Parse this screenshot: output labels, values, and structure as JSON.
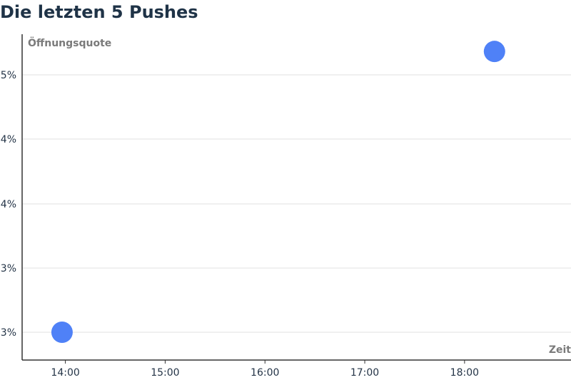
{
  "title": "Die letzten 5 Pushes",
  "chart_data": {
    "type": "scatter",
    "title": "Die letzten 5 Pushes",
    "xlabel": "Zeit",
    "ylabel": "Öffnungsquote",
    "x_ticks": [
      "14:00",
      "15:00",
      "16:00",
      "17:00",
      "18:00"
    ],
    "y_ticks": [
      "5%",
      "4%",
      "4%",
      "3%",
      "3%"
    ],
    "xlim": [
      "13:34",
      "19:04"
    ],
    "ylim": [
      2.6,
      5.3
    ],
    "grid": true,
    "legend": "none",
    "series": [
      {
        "points": [
          {
            "x": "13:58",
            "y": 2.8
          },
          {
            "x": "18:18",
            "y": 5.2
          }
        ]
      }
    ],
    "colors": {
      "point": "#4f81f7",
      "grid": "#e0e0e0",
      "axis": "#333333"
    }
  }
}
